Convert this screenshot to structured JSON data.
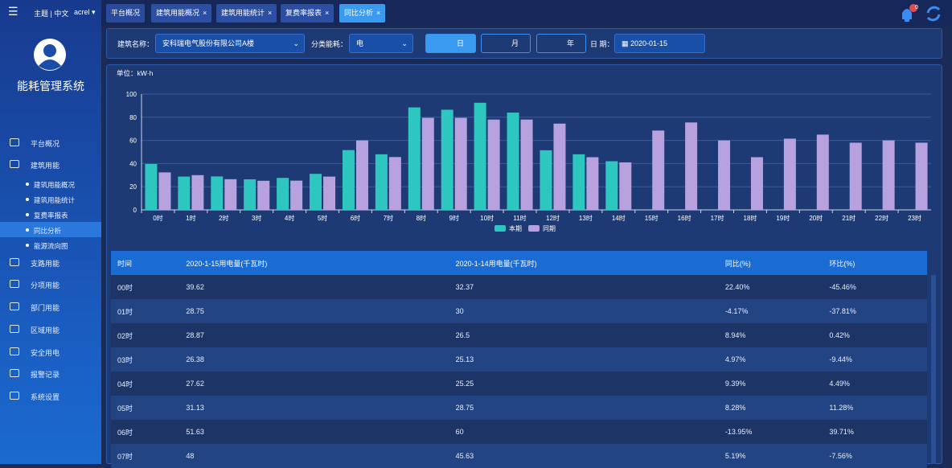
{
  "topbar": {
    "theme": "主题 | 中文",
    "user": "acrel",
    "badge": "0"
  },
  "sidebar": {
    "title": "能耗管理系统",
    "menu": [
      "平台概况",
      "建筑用能",
      "支路用能",
      "分项用能",
      "部门用能",
      "区域用能",
      "安全用电",
      "报警记录",
      "系统设置"
    ],
    "submenu": [
      "建筑用能概况",
      "建筑用能统计",
      "复费率报表",
      "同比分析",
      "能源流向图"
    ]
  },
  "tabs": [
    "平台概况",
    "建筑用能概况",
    "建筑用能统计",
    "复费率报表",
    "同比分析"
  ],
  "filter": {
    "building_label": "建筑名称：",
    "building": "安科瑞电气股份有限公司A楼",
    "category_label": "分类能耗：",
    "category": "电",
    "day": "日",
    "month": "月",
    "year": "年",
    "date_label": "日 期：",
    "date": "2020-01-15"
  },
  "chart_data": {
    "type": "bar",
    "unit_label": "单位：kW·h",
    "categories": [
      "0时",
      "1时",
      "2时",
      "3时",
      "4时",
      "5时",
      "6时",
      "7时",
      "8时",
      "9时",
      "10时",
      "11时",
      "12时",
      "13时",
      "14时",
      "15时",
      "16时",
      "17时",
      "18时",
      "19时",
      "20时",
      "21时",
      "22时",
      "23时"
    ],
    "series": [
      {
        "name": "本期",
        "color": "#2ec7c0",
        "values": [
          39.62,
          28.75,
          28.87,
          26.38,
          27.62,
          31.13,
          51.63,
          48,
          88.5,
          86.5,
          92.5,
          84,
          51.5,
          48,
          42,
          null,
          null,
          null,
          null,
          null,
          null,
          null,
          null,
          null
        ]
      },
      {
        "name": "同期",
        "color": "#b7a1de",
        "values": [
          32.37,
          30,
          26.5,
          25.13,
          25.25,
          28.75,
          60,
          45.63,
          79.5,
          79.5,
          78,
          78,
          74.5,
          45.5,
          41,
          68.5,
          75.5,
          60,
          45.5,
          61.5,
          65,
          58,
          60,
          58
        ]
      }
    ],
    "ylim": [
      0,
      100
    ],
    "yticks": [
      0,
      20,
      40,
      60,
      80,
      100
    ],
    "grid": true
  },
  "table": {
    "header": [
      "时间",
      "2020-1-15用电量(千瓦时)",
      "2020-1-14用电量(千瓦时)",
      "同比(%)",
      "环比(%)"
    ],
    "rows": [
      [
        "00时",
        "39.62",
        "32.37",
        "22.40%",
        "-45.46%"
      ],
      [
        "01时",
        "28.75",
        "30",
        "-4.17%",
        "-37.81%"
      ],
      [
        "02时",
        "28.87",
        "26.5",
        "8.94%",
        "0.42%"
      ],
      [
        "03时",
        "26.38",
        "25.13",
        "4.97%",
        "-9.44%"
      ],
      [
        "04时",
        "27.62",
        "25.25",
        "9.39%",
        "4.49%"
      ],
      [
        "05时",
        "31.13",
        "28.75",
        "8.28%",
        "11.28%"
      ],
      [
        "06时",
        "51.63",
        "60",
        "-13.95%",
        "39.71%"
      ],
      [
        "07时",
        "48",
        "45.63",
        "5.19%",
        "-7.56%"
      ]
    ]
  }
}
